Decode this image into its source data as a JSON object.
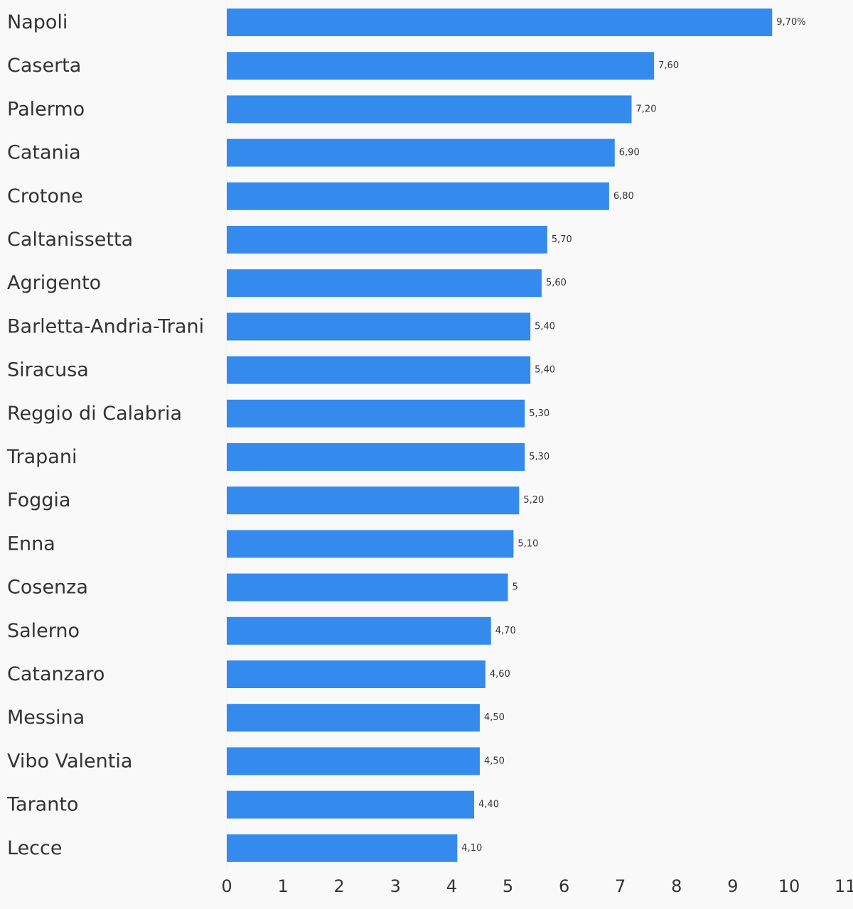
{
  "chart_data": {
    "type": "bar",
    "orientation": "horizontal",
    "categories": [
      "Napoli",
      "Caserta",
      "Palermo",
      "Catania",
      "Crotone",
      "Caltanissetta",
      "Agrigento",
      "Barletta-Andria-Trani",
      "Siracusa",
      "Reggio di Calabria",
      "Trapani",
      "Foggia",
      "Enna",
      "Cosenza",
      "Salerno",
      "Catanzaro",
      "Messina",
      "Vibo Valentia",
      "Taranto",
      "Lecce"
    ],
    "values": [
      9.7,
      7.6,
      7.2,
      6.9,
      6.8,
      5.7,
      5.6,
      5.4,
      5.4,
      5.3,
      5.3,
      5.2,
      5.1,
      5,
      4.7,
      4.6,
      4.5,
      4.5,
      4.4,
      4.1
    ],
    "data_labels": [
      "9,70%",
      "7,60",
      "7,20",
      "6,90",
      "6,80",
      "5,70",
      "5,60",
      "5,40",
      "5,40",
      "5,30",
      "5,30",
      "5,20",
      "5,10",
      "5",
      "4,70",
      "4,60",
      "4,50",
      "4,50",
      "4,40",
      "4,10"
    ],
    "x_ticks": [
      "0",
      "1",
      "2",
      "3",
      "4",
      "5",
      "6",
      "7",
      "8",
      "9",
      "10",
      "11"
    ],
    "xlim": [
      0,
      11
    ],
    "title": "",
    "xlabel": "",
    "ylabel": "",
    "grid": false,
    "legend": "none",
    "colors": {
      "bar": "#348bed",
      "text": "#333333",
      "background": "#f9f9f9",
      "axis_line": "#eeeeee"
    }
  }
}
